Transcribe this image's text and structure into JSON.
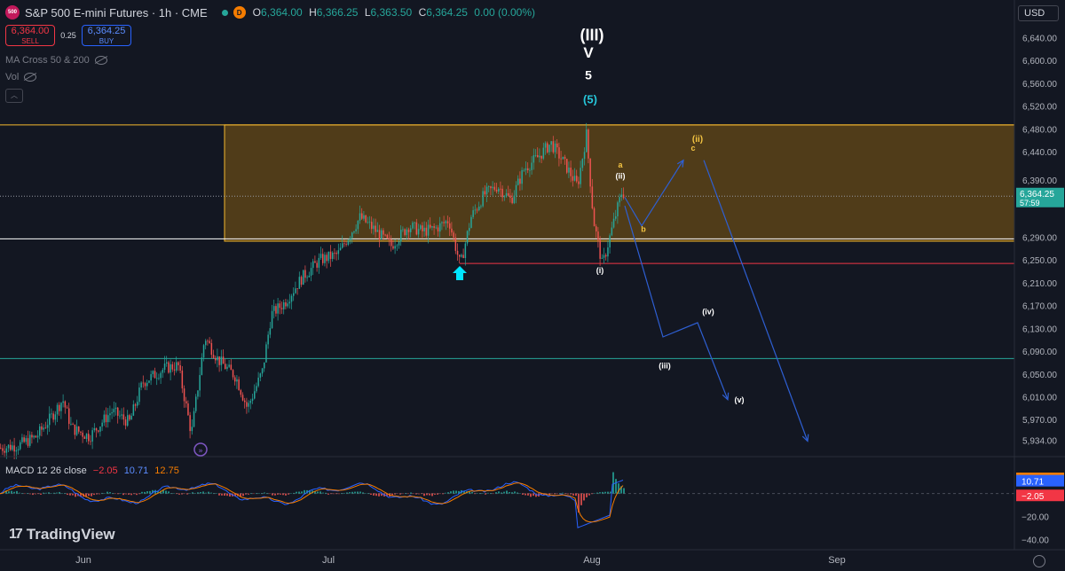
{
  "header": {
    "symbol_icon_text": "500",
    "title": "S&P 500 E-mini Futures · 1h · CME",
    "status_badge": "D",
    "ohlc": {
      "o_key": "O",
      "o_val": "6,364.00",
      "h_key": "H",
      "h_val": "6,366.25",
      "l_key": "L",
      "l_val": "6,363.50",
      "c_key": "C",
      "c_val": "6,364.25",
      "change": "0.00 (0.00%)"
    }
  },
  "trade": {
    "sell_price": "6,364.00",
    "sell_label": "SELL",
    "spread": "0.25",
    "buy_price": "6,364.25",
    "buy_label": "BUY"
  },
  "indicators": {
    "ma": "MA Cross 50 & 200",
    "vol": "Vol"
  },
  "currency": "USD",
  "macd": {
    "label": "MACD 12 26 close",
    "v1": "−2.05",
    "v2": "10.71",
    "v3": "12.75"
  },
  "brand": "TradingView",
  "colors": {
    "up": "#26a69a",
    "down": "#ef5350",
    "zone": "#5c4318",
    "zone_border": "#f5b82e",
    "wave": "#2e5fd3",
    "support": "#f23645",
    "bg": "#131722"
  },
  "chart_data": {
    "type": "candlestick",
    "timeframe": "1h",
    "price_axis": {
      "range": [
        5910,
        6670
      ],
      "ticks": [
        "6,640.00",
        "6,600.00",
        "6,560.00",
        "6,520.00",
        "6,480.00",
        "6,440.00",
        "6,390.00",
        "6,290.00",
        "6,250.00",
        "6,210.00",
        "6,170.00",
        "6,130.00",
        "6,090.00",
        "6,050.00",
        "6,010.00",
        "5,970.00",
        "5,934.00"
      ]
    },
    "price_ticks_num": [
      6640,
      6600,
      6560,
      6520,
      6480,
      6440,
      6390,
      6290,
      6250,
      6210,
      6170,
      6130,
      6090,
      6050,
      6010,
      5970,
      5934
    ],
    "last_price": {
      "value": 6364.25,
      "label": "6,364.25",
      "countdown": "57:59"
    },
    "time_axis": [
      "Jun",
      "Jul",
      "Aug",
      "Sep"
    ],
    "time_axis_idx": [
      94,
      370,
      667,
      943
    ],
    "series_path": [
      [
        0,
        5920
      ],
      [
        20,
        5925
      ],
      [
        40,
        5940
      ],
      [
        55,
        5970
      ],
      [
        70,
        6005
      ],
      [
        80,
        5955
      ],
      [
        100,
        5940
      ],
      [
        125,
        5985
      ],
      [
        145,
        5965
      ],
      [
        160,
        6035
      ],
      [
        185,
        6060
      ],
      [
        200,
        6065
      ],
      [
        215,
        5945
      ],
      [
        230,
        6115
      ],
      [
        245,
        6075
      ],
      [
        265,
        6045
      ],
      [
        278,
        5990
      ],
      [
        295,
        6055
      ],
      [
        305,
        6155
      ],
      [
        320,
        6175
      ],
      [
        340,
        6220
      ],
      [
        360,
        6250
      ],
      [
        380,
        6260
      ],
      [
        405,
        6325
      ],
      [
        420,
        6305
      ],
      [
        440,
        6275
      ],
      [
        460,
        6310
      ],
      [
        475,
        6300
      ],
      [
        490,
        6305
      ],
      [
        505,
        6320
      ],
      [
        518,
        6240
      ],
      [
        530,
        6325
      ],
      [
        545,
        6365
      ],
      [
        560,
        6380
      ],
      [
        575,
        6355
      ],
      [
        590,
        6410
      ],
      [
        605,
        6430
      ],
      [
        620,
        6455
      ],
      [
        635,
        6420
      ],
      [
        650,
        6380
      ],
      [
        660,
        6470
      ],
      [
        668,
        6320
      ],
      [
        678,
        6240
      ],
      [
        688,
        6300
      ],
      [
        700,
        6370
      ],
      [
        704,
        6364
      ]
    ],
    "zones": [
      {
        "from_idx": 253,
        "from_price": 6487,
        "to_price": 6283,
        "label": ""
      }
    ],
    "levels": [
      {
        "price": 6287,
        "color": "#ffffff"
      },
      {
        "price": 6244,
        "color": "#f23645"
      },
      {
        "price": 6077,
        "color": "#26a69a"
      }
    ],
    "projections": [
      {
        "points": [
          [
            704,
            6360
          ],
          [
            723,
            6310
          ],
          [
            770,
            6425
          ]
        ]
      },
      {
        "points": [
          [
            704,
            6345
          ],
          [
            747,
            6115
          ],
          [
            786,
            6140
          ],
          [
            820,
            6005
          ]
        ]
      },
      {
        "points": [
          [
            793,
            6425
          ],
          [
            910,
            5932
          ]
        ]
      }
    ],
    "wave_labels": [
      {
        "text": "(III)",
        "x": 667,
        "price": 6635,
        "color": "#ffffff",
        "size": 18
      },
      {
        "text": "V",
        "x": 663,
        "price": 6605,
        "color": "#ffffff",
        "size": 17
      },
      {
        "text": "5",
        "x": 663,
        "price": 6567,
        "color": "#ffffff",
        "size": 14
      },
      {
        "text": "(5)",
        "x": 665,
        "price": 6525,
        "color": "#26c6da",
        "size": 13
      },
      {
        "text": "a",
        "x": 699,
        "price": 6412,
        "color": "#f5c542",
        "size": 9
      },
      {
        "text": "(ii)",
        "x": 699,
        "price": 6393,
        "color": "#ffffff",
        "size": 9
      },
      {
        "text": "b",
        "x": 725,
        "price": 6299,
        "color": "#f5c542",
        "size": 9
      },
      {
        "text": "(ii)",
        "x": 786,
        "price": 6457,
        "color": "#f5c542",
        "size": 10
      },
      {
        "text": "c",
        "x": 781,
        "price": 6442,
        "color": "#f5c542",
        "size": 9
      },
      {
        "text": "(i)",
        "x": 676,
        "price": 6227,
        "color": "#ffffff",
        "size": 9
      },
      {
        "text": "(iv)",
        "x": 798,
        "price": 6155,
        "color": "#ffffff",
        "size": 9
      },
      {
        "text": "(iii)",
        "x": 749,
        "price": 6060,
        "color": "#ffffff",
        "size": 9
      },
      {
        "text": "(v)",
        "x": 833,
        "price": 6000,
        "color": "#ffffff",
        "size": 9
      }
    ],
    "macd": {
      "ticks": [
        "12.75",
        "10.71",
        "−2.05",
        "−20.00",
        "−40.00"
      ],
      "range": [
        -45,
        22
      ],
      "tick_values": [
        12.75,
        10.71,
        -2.05,
        -20,
        -40
      ],
      "hist_color_up": "#26a69a",
      "hist_color_down": "#ef5350",
      "macd_color": "#2962ff",
      "signal_color": "#f57c00"
    }
  }
}
